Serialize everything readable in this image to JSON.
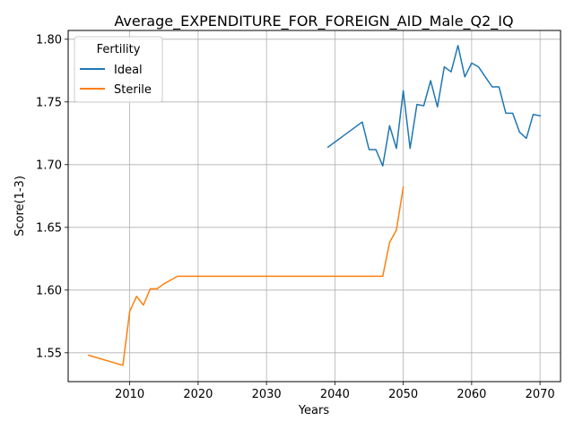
{
  "chart_data": {
    "type": "line",
    "title": "Average_EXPENDITURE_FOR_FOREIGN_AID_Male_Q2_IQ",
    "xlabel": "Years",
    "ylabel": "Score(1-3)",
    "xlim": [
      2001,
      2073
    ],
    "ylim": [
      1.527,
      1.807
    ],
    "xticks": [
      2010,
      2020,
      2030,
      2040,
      2050,
      2060,
      2070
    ],
    "yticks": [
      1.55,
      1.6,
      1.65,
      1.7,
      1.75,
      1.8
    ],
    "ytick_labels": [
      "1.55",
      "1.60",
      "1.65",
      "1.70",
      "1.75",
      "1.80"
    ],
    "grid": true,
    "legend": {
      "title": "Fertility",
      "placement": "top-left"
    },
    "series": [
      {
        "name": "Ideal",
        "color": "#1f77b4",
        "x": [
          2039,
          2044,
          2045,
          2046,
          2047,
          2048,
          2049,
          2050,
          2051,
          2052,
          2053,
          2054,
          2055,
          2056,
          2057,
          2058,
          2059,
          2060,
          2061,
          2062,
          2063,
          2064,
          2065,
          2066,
          2067,
          2068,
          2069,
          2070
        ],
        "y": [
          1.714,
          1.734,
          1.712,
          1.712,
          1.699,
          1.731,
          1.713,
          1.759,
          1.713,
          1.748,
          1.747,
          1.767,
          1.746,
          1.778,
          1.774,
          1.795,
          1.77,
          1.781,
          1.778,
          1.77,
          1.762,
          1.762,
          1.741,
          1.741,
          1.726,
          1.721,
          1.74,
          1.739
        ]
      },
      {
        "name": "Sterile",
        "color": "#ff7f0e",
        "x": [
          2004,
          2009,
          2010,
          2011,
          2012,
          2013,
          2014,
          2015,
          2016,
          2017,
          2018,
          2047,
          2048,
          2049,
          2050
        ],
        "y": [
          1.548,
          1.54,
          1.583,
          1.595,
          1.588,
          1.601,
          1.601,
          1.605,
          1.608,
          1.611,
          1.611,
          1.611,
          1.638,
          1.648,
          1.682
        ]
      }
    ]
  }
}
